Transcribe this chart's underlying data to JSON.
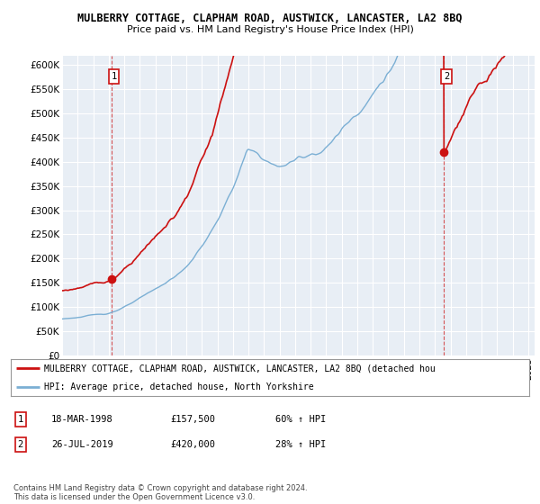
{
  "title1": "MULBERRY COTTAGE, CLAPHAM ROAD, AUSTWICK, LANCASTER, LA2 8BQ",
  "title2": "Price paid vs. HM Land Registry's House Price Index (HPI)",
  "ylim": [
    0,
    620000
  ],
  "yticks": [
    0,
    50000,
    100000,
    150000,
    200000,
    250000,
    300000,
    350000,
    400000,
    450000,
    500000,
    550000,
    600000
  ],
  "ytick_labels": [
    "£0",
    "£50K",
    "£100K",
    "£150K",
    "£200K",
    "£250K",
    "£300K",
    "£350K",
    "£400K",
    "£450K",
    "£500K",
    "£550K",
    "£600K"
  ],
  "hpi_color": "#7bafd4",
  "price_color": "#cc1111",
  "bg_color": "#ffffff",
  "plot_bg_color": "#e8eef5",
  "grid_color": "#ffffff",
  "purchase1_month": 38,
  "purchase1_value": 157500,
  "purchase2_month": 295,
  "purchase2_value": 420000,
  "legend_line1": "MULBERRY COTTAGE, CLAPHAM ROAD, AUSTWICK, LANCASTER, LA2 8BQ (detached hou",
  "legend_line2": "HPI: Average price, detached house, North Yorkshire",
  "table_row1": [
    "1",
    "18-MAR-1998",
    "£157,500",
    "60% ↑ HPI"
  ],
  "table_row2": [
    "2",
    "26-JUL-2019",
    "£420,000",
    "28% ↑ HPI"
  ],
  "footer": "Contains HM Land Registry data © Crown copyright and database right 2024.\nThis data is licensed under the Open Government Licence v3.0.",
  "start_year": 1995,
  "end_year": 2025,
  "n_months": 366
}
